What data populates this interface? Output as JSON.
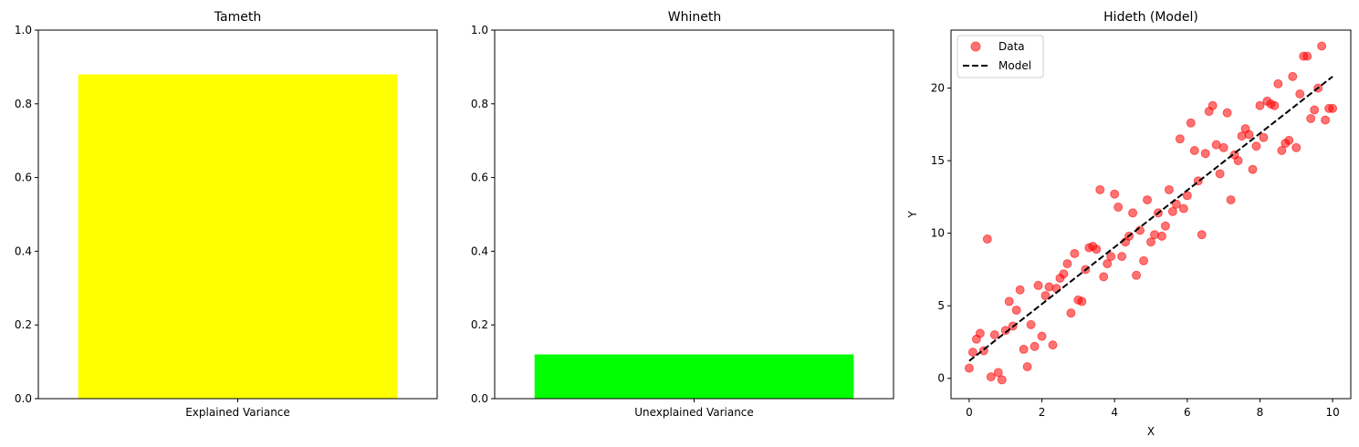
{
  "chart_data": [
    {
      "type": "bar",
      "title": "Tameth",
      "xlabel": "",
      "ylabel": "",
      "categories": [
        "Explained Variance"
      ],
      "values": [
        0.88
      ],
      "colors": [
        "#ffff00"
      ],
      "ylim": [
        0,
        1.0
      ],
      "yticks": [
        0.0,
        0.2,
        0.4,
        0.6,
        0.8,
        1.0
      ],
      "ytick_labels": [
        "0.0",
        "0.2",
        "0.4",
        "0.6",
        "0.8",
        "1.0"
      ],
      "grid": false
    },
    {
      "type": "bar",
      "title": "Whineth",
      "xlabel": "",
      "ylabel": "",
      "categories": [
        "Unexplained Variance"
      ],
      "values": [
        0.12
      ],
      "colors": [
        "#00ff00"
      ],
      "ylim": [
        0,
        1.0
      ],
      "yticks": [
        0.0,
        0.2,
        0.4,
        0.6,
        0.8,
        1.0
      ],
      "ytick_labels": [
        "0.0",
        "0.2",
        "0.4",
        "0.6",
        "0.8",
        "1.0"
      ],
      "grid": false
    },
    {
      "type": "scatter",
      "title": "Hideth (Model)",
      "xlabel": "X",
      "ylabel": "Y",
      "xlim": [
        -0.5,
        10.5
      ],
      "ylim": [
        -1.4,
        24.0
      ],
      "xticks": [
        0,
        2,
        4,
        6,
        8,
        10
      ],
      "xtick_labels": [
        "0",
        "2",
        "4",
        "6",
        "8",
        "10"
      ],
      "yticks": [
        0,
        5,
        10,
        15,
        20
      ],
      "ytick_labels": [
        "0",
        "5",
        "10",
        "15",
        "20"
      ],
      "legend": {
        "position": "top-left",
        "entries": [
          "Data",
          "Model"
        ]
      },
      "grid": false,
      "series": [
        {
          "name": "Data",
          "kind": "scatter",
          "color": "#ff0000",
          "alpha": 0.55,
          "x": [
            0.0,
            0.1,
            0.2,
            0.3,
            0.4,
            0.5,
            0.6,
            0.7,
            0.8,
            0.9,
            1.0,
            1.1,
            1.2,
            1.3,
            1.4,
            1.5,
            1.6,
            1.7,
            1.8,
            1.9,
            2.0,
            2.1,
            2.2,
            2.3,
            2.4,
            2.5,
            2.6,
            2.7,
            2.8,
            2.9,
            3.0,
            3.1,
            3.2,
            3.3,
            3.4,
            3.5,
            3.6,
            3.7,
            3.8,
            3.9,
            4.0,
            4.1,
            4.2,
            4.3,
            4.4,
            4.5,
            4.6,
            4.7,
            4.8,
            4.9,
            5.0,
            5.1,
            5.2,
            5.3,
            5.4,
            5.5,
            5.6,
            5.7,
            5.8,
            5.9,
            6.0,
            6.1,
            6.2,
            6.3,
            6.4,
            6.5,
            6.6,
            6.7,
            6.8,
            6.9,
            7.0,
            7.1,
            7.2,
            7.3,
            7.4,
            7.5,
            7.6,
            7.7,
            7.8,
            7.9,
            8.0,
            8.1,
            8.2,
            8.3,
            8.4,
            8.5,
            8.6,
            8.7,
            8.8,
            8.9,
            9.0,
            9.1,
            9.2,
            9.3,
            9.4,
            9.5,
            9.6,
            9.7,
            9.8,
            9.9,
            10.0
          ],
          "y": [
            0.7,
            1.8,
            2.7,
            3.1,
            1.9,
            9.6,
            0.1,
            3.0,
            0.4,
            -0.1,
            3.3,
            5.3,
            3.6,
            4.7,
            6.1,
            2.0,
            0.8,
            3.7,
            2.2,
            6.4,
            2.9,
            5.7,
            6.3,
            2.3,
            6.2,
            6.9,
            7.2,
            7.9,
            4.5,
            8.6,
            5.4,
            5.3,
            7.5,
            9.0,
            9.1,
            8.9,
            13.0,
            7.0,
            7.9,
            8.4,
            12.7,
            11.8,
            8.4,
            9.4,
            9.8,
            11.4,
            7.1,
            10.2,
            8.1,
            12.3,
            9.4,
            9.9,
            11.4,
            9.8,
            10.5,
            13.0,
            11.5,
            12.0,
            16.5,
            11.7,
            12.6,
            17.6,
            15.7,
            13.6,
            9.9,
            15.5,
            18.4,
            18.8,
            16.1,
            14.1,
            15.9,
            18.3,
            12.3,
            15.4,
            15.0,
            16.7,
            17.2,
            16.8,
            14.4,
            16.0,
            18.8,
            16.6,
            19.1,
            18.9,
            18.8,
            20.3,
            15.7,
            16.2,
            16.4,
            20.8,
            15.9,
            19.6,
            22.2,
            22.2,
            17.9,
            18.5,
            20.0,
            22.9,
            17.8,
            18.6,
            18.6
          ]
        },
        {
          "name": "Model",
          "kind": "line",
          "style": "dashed",
          "color": "#000000",
          "x": [
            0,
            10
          ],
          "y": [
            1.2,
            20.8
          ]
        }
      ]
    }
  ]
}
